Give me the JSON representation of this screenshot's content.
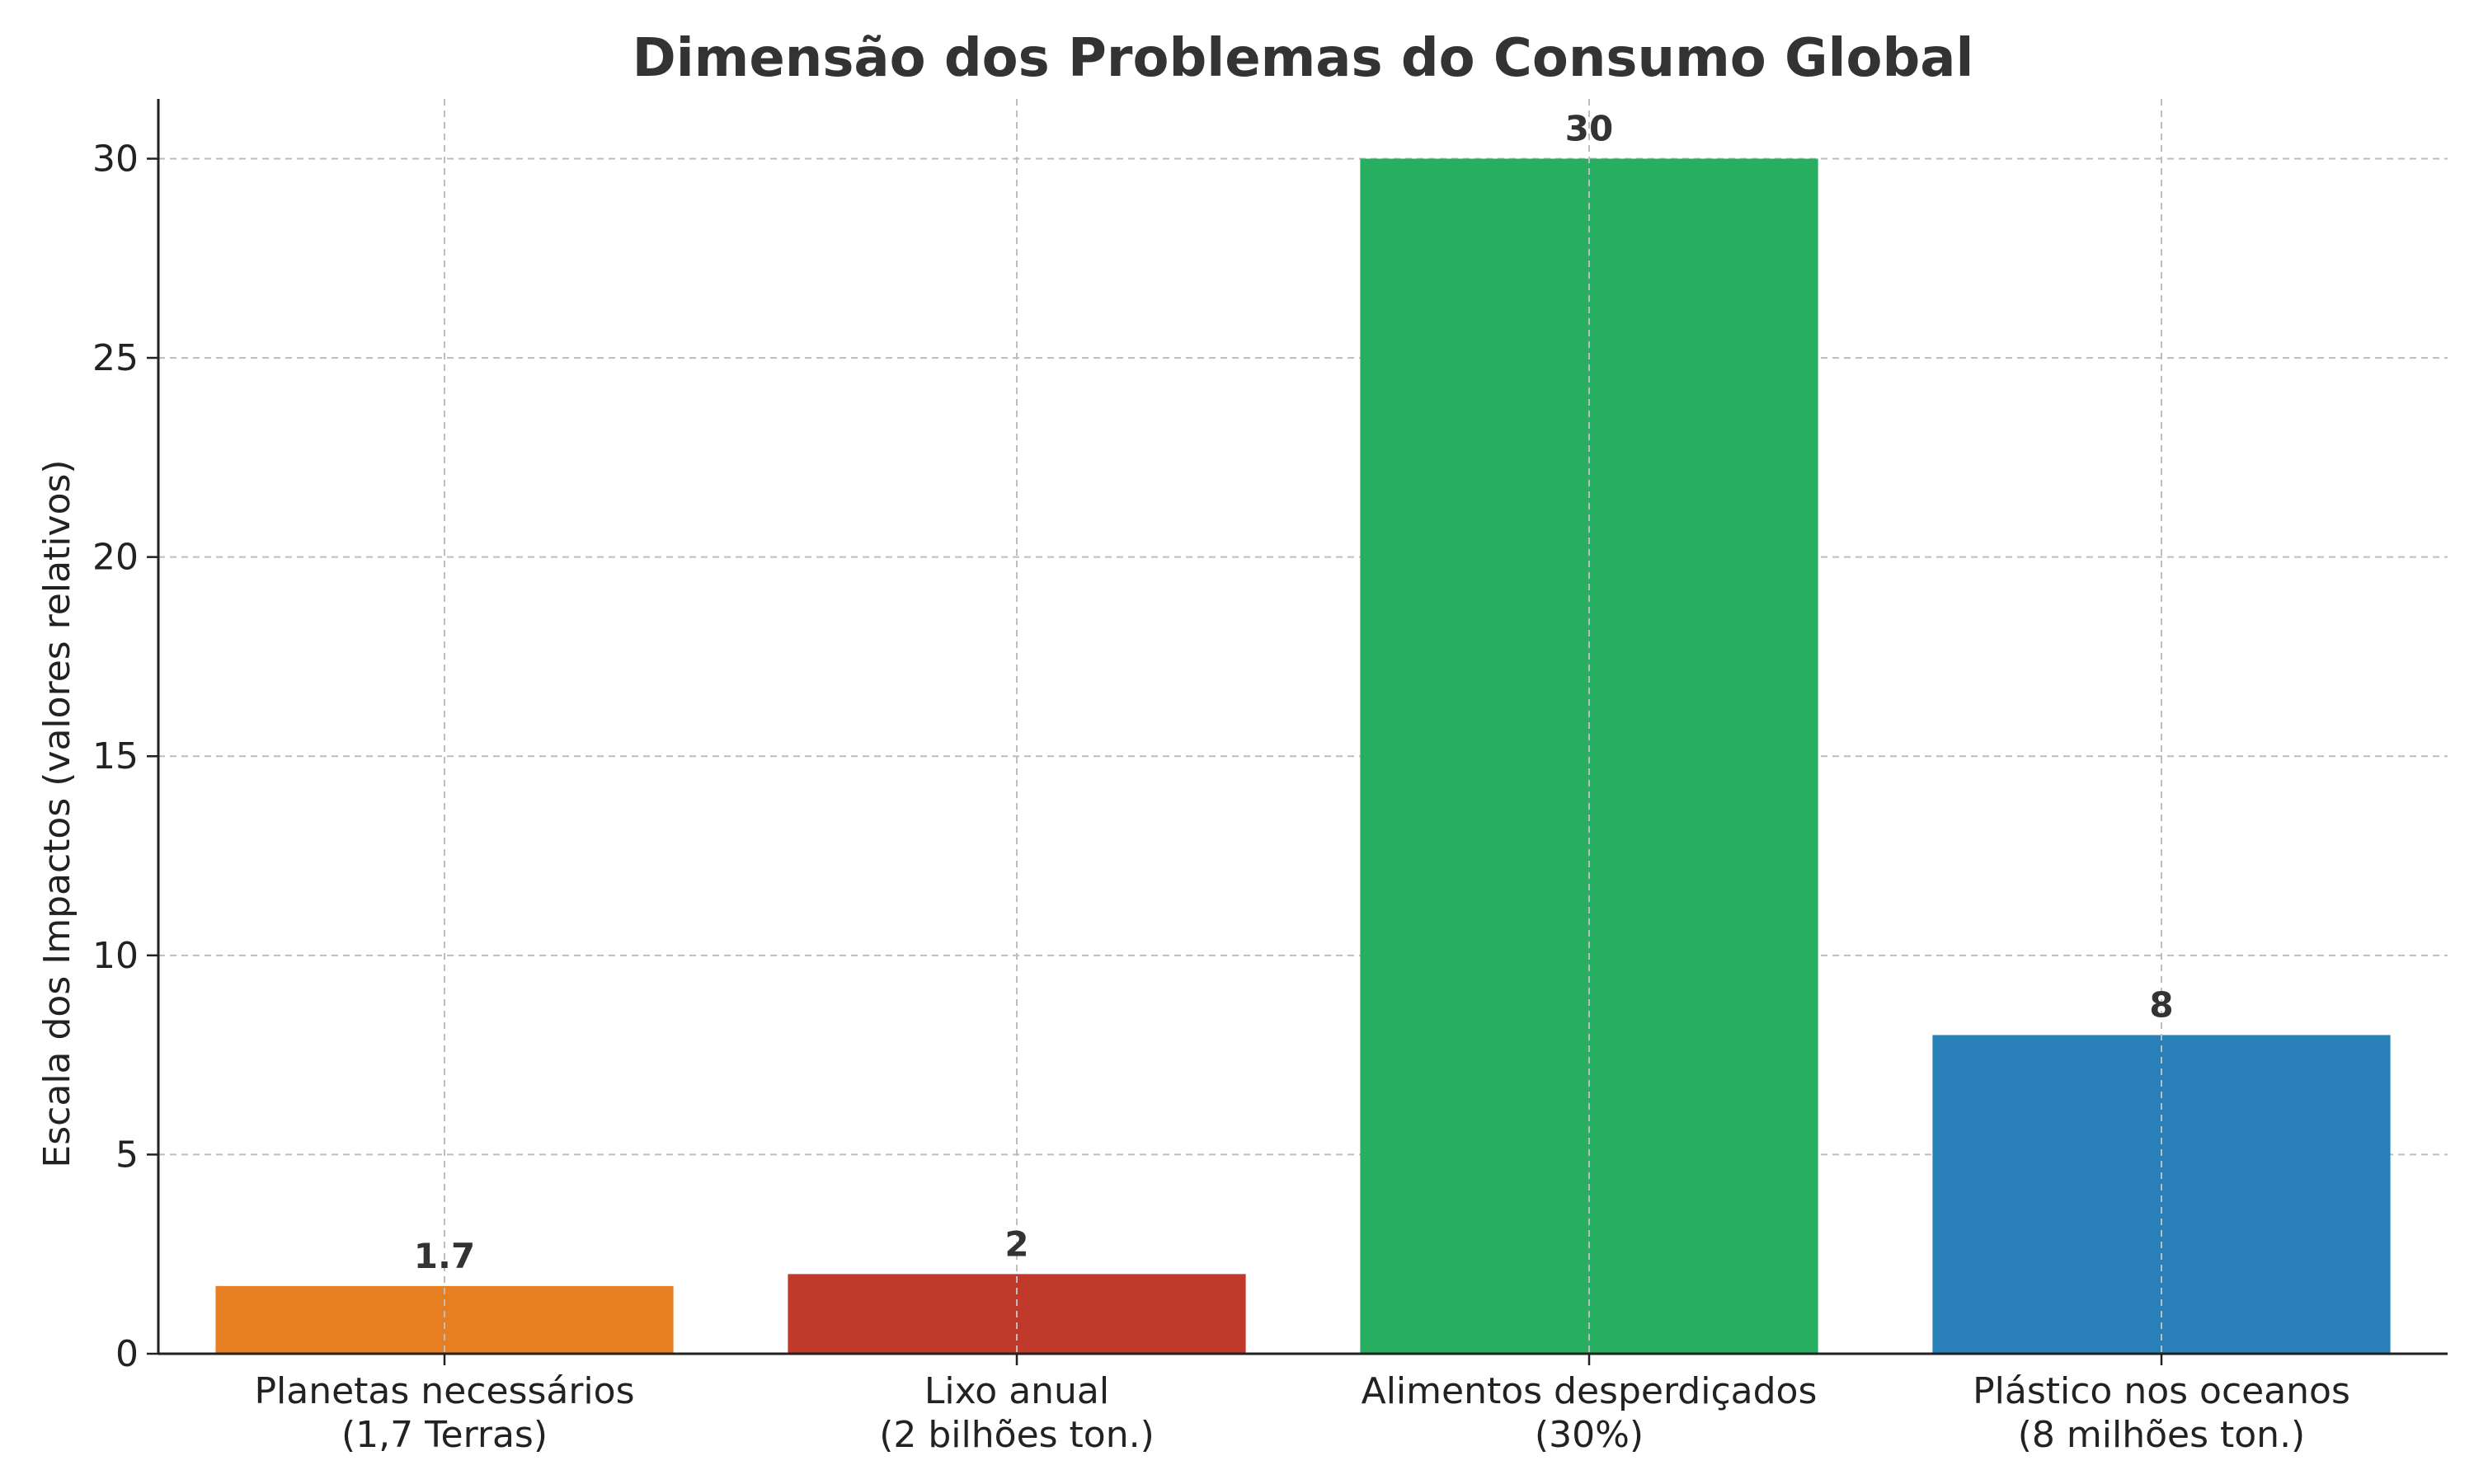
{
  "chart_data": {
    "type": "bar",
    "title": "Dimensão dos Problemas do Consumo Global",
    "xlabel": "",
    "ylabel": "Escala dos Impactos (valores relativos)",
    "ylim": [
      0,
      31.5
    ],
    "yticks": [
      0,
      5,
      10,
      15,
      20,
      25,
      30
    ],
    "grid": true,
    "categories": [
      [
        "Planetas necessários",
        "(1,7 Terras)"
      ],
      [
        "Lixo anual",
        "(2 bilhões ton.)"
      ],
      [
        "Alimentos desperdiçados",
        "(30%)"
      ],
      [
        "Plástico nos oceanos",
        "(8 milhões ton.)"
      ]
    ],
    "values": [
      1.7,
      2,
      30,
      8
    ],
    "value_labels": [
      "1.7",
      "2",
      "30",
      "8"
    ],
    "colors": [
      "#e67e22",
      "#c0392b",
      "#27ae60",
      "#2980b9"
    ]
  }
}
